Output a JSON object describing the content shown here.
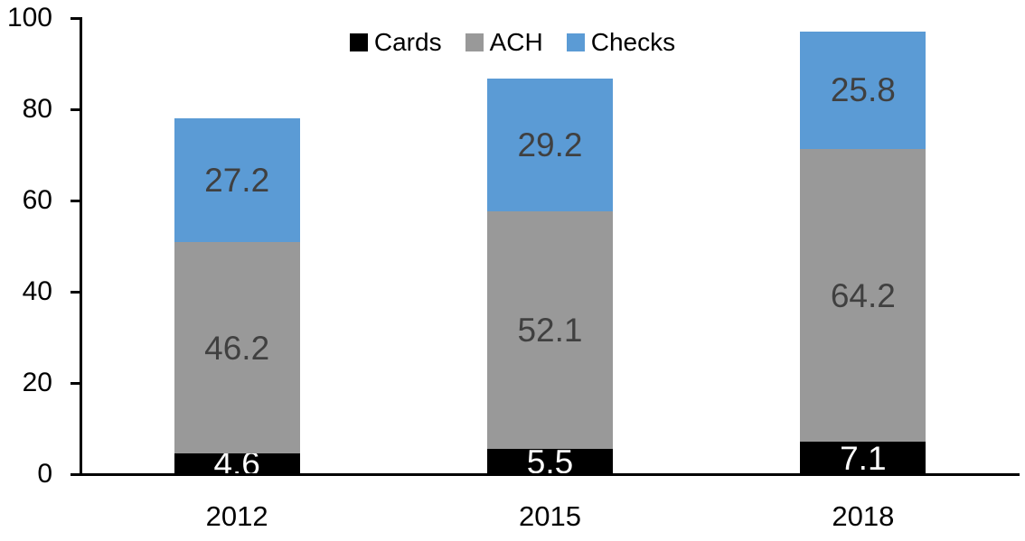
{
  "chart_data": {
    "type": "bar",
    "stacked": true,
    "title": "",
    "xlabel": "",
    "ylabel": "",
    "categories": [
      "2012",
      "2015",
      "2018"
    ],
    "series": [
      {
        "name": "Cards",
        "color": "#000000",
        "label_color": "#FFFFFF",
        "values": [
          4.6,
          5.5,
          7.1
        ]
      },
      {
        "name": "ACH",
        "color": "#999999",
        "label_color": "#404040",
        "values": [
          46.2,
          52.1,
          64.2
        ]
      },
      {
        "name": "Checks",
        "color": "#5B9BD5",
        "label_color": "#404040",
        "values": [
          27.2,
          29.2,
          25.8
        ]
      }
    ],
    "totals": [
      78.0,
      86.8,
      97.1
    ],
    "ylim": [
      0,
      100
    ],
    "yticks": [
      0,
      20,
      40,
      60,
      80,
      100
    ],
    "grid": false,
    "legend_position": "top-center",
    "data_labels": true,
    "colors": {
      "axis": "#000000",
      "tick_label": "#000000",
      "background": "#FFFFFF"
    }
  }
}
